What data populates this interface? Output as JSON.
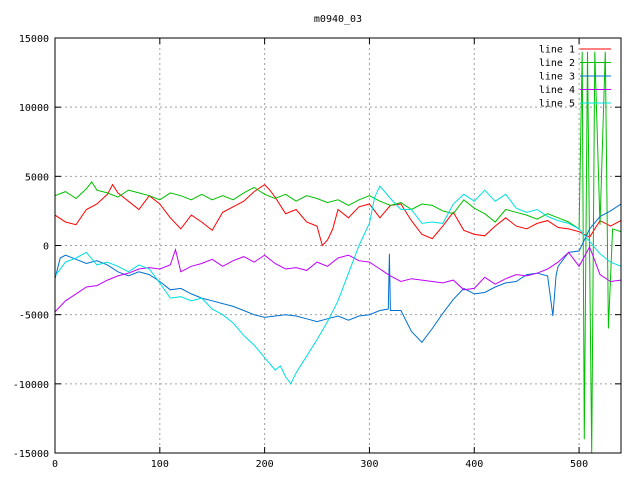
{
  "chart_data": {
    "type": "line",
    "title": "m0940_03",
    "xlabel": "",
    "ylabel": "",
    "xlim": [
      0,
      540
    ],
    "ylim": [
      -15000,
      15000
    ],
    "x_ticks": [
      0,
      100,
      200,
      300,
      400,
      500
    ],
    "y_ticks": [
      -15000,
      -10000,
      -5000,
      0,
      5000,
      10000,
      15000
    ],
    "grid": true,
    "legend_position": "top-right",
    "series": [
      {
        "name": "line 1",
        "color": "#ff0000",
        "points": [
          [
            0,
            2200
          ],
          [
            10,
            1700
          ],
          [
            20,
            1500
          ],
          [
            30,
            2600
          ],
          [
            40,
            3000
          ],
          [
            50,
            3700
          ],
          [
            55,
            4400
          ],
          [
            60,
            3800
          ],
          [
            70,
            3200
          ],
          [
            80,
            2600
          ],
          [
            90,
            3600
          ],
          [
            100,
            3000
          ],
          [
            110,
            2000
          ],
          [
            120,
            1200
          ],
          [
            130,
            2200
          ],
          [
            140,
            1700
          ],
          [
            150,
            1100
          ],
          [
            160,
            2400
          ],
          [
            170,
            2800
          ],
          [
            180,
            3200
          ],
          [
            190,
            3900
          ],
          [
            200,
            4400
          ],
          [
            205,
            4000
          ],
          [
            210,
            3500
          ],
          [
            220,
            2300
          ],
          [
            230,
            2600
          ],
          [
            240,
            1700
          ],
          [
            250,
            1400
          ],
          [
            255,
            0
          ],
          [
            260,
            400
          ],
          [
            265,
            1200
          ],
          [
            270,
            2600
          ],
          [
            280,
            2000
          ],
          [
            290,
            2800
          ],
          [
            300,
            3000
          ],
          [
            310,
            2000
          ],
          [
            320,
            2900
          ],
          [
            330,
            3000
          ],
          [
            340,
            1800
          ],
          [
            350,
            800
          ],
          [
            360,
            500
          ],
          [
            370,
            1400
          ],
          [
            380,
            2400
          ],
          [
            390,
            1100
          ],
          [
            400,
            800
          ],
          [
            410,
            700
          ],
          [
            420,
            1400
          ],
          [
            430,
            2000
          ],
          [
            440,
            1400
          ],
          [
            450,
            1200
          ],
          [
            460,
            1600
          ],
          [
            470,
            1800
          ],
          [
            480,
            1300
          ],
          [
            490,
            1200
          ],
          [
            500,
            1000
          ],
          [
            510,
            600
          ],
          [
            520,
            1800
          ],
          [
            530,
            1400
          ],
          [
            540,
            1800
          ]
        ]
      },
      {
        "name": "line 2",
        "color": "#00c000",
        "points": [
          [
            0,
            3600
          ],
          [
            10,
            3900
          ],
          [
            20,
            3400
          ],
          [
            30,
            4100
          ],
          [
            35,
            4600
          ],
          [
            40,
            4000
          ],
          [
            50,
            3800
          ],
          [
            60,
            3500
          ],
          [
            70,
            4000
          ],
          [
            80,
            3800
          ],
          [
            90,
            3600
          ],
          [
            100,
            3300
          ],
          [
            110,
            3800
          ],
          [
            120,
            3600
          ],
          [
            130,
            3300
          ],
          [
            140,
            3700
          ],
          [
            150,
            3300
          ],
          [
            160,
            3600
          ],
          [
            170,
            3300
          ],
          [
            180,
            3800
          ],
          [
            190,
            4200
          ],
          [
            200,
            3700
          ],
          [
            210,
            3400
          ],
          [
            220,
            3700
          ],
          [
            230,
            3200
          ],
          [
            240,
            3600
          ],
          [
            250,
            3400
          ],
          [
            260,
            3100
          ],
          [
            270,
            3300
          ],
          [
            280,
            2900
          ],
          [
            290,
            3300
          ],
          [
            300,
            3600
          ],
          [
            310,
            3200
          ],
          [
            320,
            2900
          ],
          [
            330,
            3100
          ],
          [
            340,
            2600
          ],
          [
            350,
            3000
          ],
          [
            360,
            2900
          ],
          [
            370,
            2500
          ],
          [
            380,
            2300
          ],
          [
            390,
            3300
          ],
          [
            400,
            2700
          ],
          [
            410,
            2300
          ],
          [
            420,
            1700
          ],
          [
            430,
            2600
          ],
          [
            440,
            2400
          ],
          [
            450,
            2200
          ],
          [
            460,
            1900
          ],
          [
            470,
            2300
          ],
          [
            480,
            2000
          ],
          [
            490,
            1700
          ],
          [
            500,
            1200
          ],
          [
            503,
            14000
          ],
          [
            505,
            -14000
          ],
          [
            508,
            14000
          ],
          [
            512,
            -15000
          ],
          [
            515,
            14000
          ],
          [
            520,
            1500
          ],
          [
            525,
            14000
          ],
          [
            528,
            -6000
          ],
          [
            532,
            1200
          ],
          [
            540,
            1000
          ]
        ]
      },
      {
        "name": "line 3",
        "color": "#0070d0",
        "points": [
          [
            0,
            -2400
          ],
          [
            5,
            -900
          ],
          [
            10,
            -700
          ],
          [
            20,
            -1000
          ],
          [
            30,
            -1300
          ],
          [
            40,
            -1100
          ],
          [
            50,
            -1400
          ],
          [
            60,
            -1900
          ],
          [
            70,
            -2200
          ],
          [
            80,
            -1900
          ],
          [
            90,
            -2100
          ],
          [
            100,
            -2600
          ],
          [
            110,
            -3200
          ],
          [
            120,
            -3100
          ],
          [
            130,
            -3500
          ],
          [
            140,
            -3800
          ],
          [
            150,
            -4000
          ],
          [
            160,
            -4200
          ],
          [
            170,
            -4400
          ],
          [
            180,
            -4700
          ],
          [
            190,
            -5000
          ],
          [
            200,
            -5200
          ],
          [
            210,
            -5100
          ],
          [
            220,
            -5000
          ],
          [
            230,
            -5100
          ],
          [
            240,
            -5300
          ],
          [
            250,
            -5500
          ],
          [
            260,
            -5300
          ],
          [
            270,
            -5100
          ],
          [
            280,
            -5400
          ],
          [
            290,
            -5100
          ],
          [
            300,
            -5000
          ],
          [
            310,
            -4700
          ],
          [
            318,
            -4600
          ],
          [
            319,
            -600
          ],
          [
            320,
            -4700
          ],
          [
            330,
            -4700
          ],
          [
            340,
            -6200
          ],
          [
            350,
            -7000
          ],
          [
            360,
            -6000
          ],
          [
            370,
            -4900
          ],
          [
            380,
            -3900
          ],
          [
            390,
            -3100
          ],
          [
            400,
            -3500
          ],
          [
            410,
            -3400
          ],
          [
            420,
            -3000
          ],
          [
            430,
            -2700
          ],
          [
            440,
            -2600
          ],
          [
            450,
            -2100
          ],
          [
            460,
            -2000
          ],
          [
            470,
            -2200
          ],
          [
            475,
            -5100
          ],
          [
            478,
            -2200
          ],
          [
            480,
            -1500
          ],
          [
            490,
            -500
          ],
          [
            500,
            -400
          ],
          [
            510,
            1200
          ],
          [
            520,
            2100
          ],
          [
            530,
            2500
          ],
          [
            540,
            3000
          ]
        ]
      },
      {
        "name": "line 4",
        "color": "#c000ff",
        "points": [
          [
            0,
            -4800
          ],
          [
            10,
            -4000
          ],
          [
            20,
            -3500
          ],
          [
            30,
            -3000
          ],
          [
            40,
            -2900
          ],
          [
            50,
            -2500
          ],
          [
            60,
            -2200
          ],
          [
            70,
            -2000
          ],
          [
            80,
            -1700
          ],
          [
            90,
            -1600
          ],
          [
            100,
            -1700
          ],
          [
            110,
            -1400
          ],
          [
            115,
            -300
          ],
          [
            120,
            -1900
          ],
          [
            130,
            -1500
          ],
          [
            140,
            -1300
          ],
          [
            150,
            -1000
          ],
          [
            160,
            -1500
          ],
          [
            170,
            -1100
          ],
          [
            180,
            -800
          ],
          [
            190,
            -1200
          ],
          [
            200,
            -700
          ],
          [
            210,
            -1300
          ],
          [
            220,
            -1700
          ],
          [
            230,
            -1600
          ],
          [
            240,
            -1800
          ],
          [
            250,
            -1200
          ],
          [
            260,
            -1500
          ],
          [
            270,
            -900
          ],
          [
            280,
            -700
          ],
          [
            290,
            -1100
          ],
          [
            300,
            -1200
          ],
          [
            310,
            -1700
          ],
          [
            320,
            -2200
          ],
          [
            330,
            -2600
          ],
          [
            340,
            -2400
          ],
          [
            350,
            -2500
          ],
          [
            360,
            -2600
          ],
          [
            370,
            -2700
          ],
          [
            380,
            -2500
          ],
          [
            390,
            -3200
          ],
          [
            400,
            -3100
          ],
          [
            410,
            -2300
          ],
          [
            420,
            -2800
          ],
          [
            430,
            -2400
          ],
          [
            440,
            -2100
          ],
          [
            450,
            -2200
          ],
          [
            460,
            -2000
          ],
          [
            470,
            -1700
          ],
          [
            480,
            -1200
          ],
          [
            490,
            -500
          ],
          [
            500,
            -1500
          ],
          [
            510,
            -100
          ],
          [
            520,
            -2100
          ],
          [
            530,
            -2600
          ],
          [
            540,
            -2500
          ]
        ]
      },
      {
        "name": "line 5",
        "color": "#00e0e0",
        "points": [
          [
            0,
            -2200
          ],
          [
            10,
            -1200
          ],
          [
            20,
            -900
          ],
          [
            30,
            -500
          ],
          [
            40,
            -1400
          ],
          [
            50,
            -1200
          ],
          [
            60,
            -1500
          ],
          [
            70,
            -1900
          ],
          [
            80,
            -1400
          ],
          [
            90,
            -1700
          ],
          [
            100,
            -2700
          ],
          [
            110,
            -3800
          ],
          [
            120,
            -3700
          ],
          [
            130,
            -4000
          ],
          [
            140,
            -3800
          ],
          [
            150,
            -4600
          ],
          [
            160,
            -5000
          ],
          [
            170,
            -5600
          ],
          [
            180,
            -6500
          ],
          [
            190,
            -7200
          ],
          [
            200,
            -8100
          ],
          [
            210,
            -9000
          ],
          [
            215,
            -8700
          ],
          [
            220,
            -9500
          ],
          [
            225,
            -10000
          ],
          [
            230,
            -9200
          ],
          [
            240,
            -8000
          ],
          [
            250,
            -6800
          ],
          [
            260,
            -5500
          ],
          [
            270,
            -4000
          ],
          [
            280,
            -2000
          ],
          [
            290,
            0
          ],
          [
            300,
            1600
          ],
          [
            305,
            3500
          ],
          [
            310,
            4300
          ],
          [
            320,
            3400
          ],
          [
            330,
            2600
          ],
          [
            340,
            2600
          ],
          [
            350,
            1600
          ],
          [
            360,
            1700
          ],
          [
            370,
            1600
          ],
          [
            380,
            3000
          ],
          [
            390,
            3700
          ],
          [
            400,
            3200
          ],
          [
            410,
            4000
          ],
          [
            420,
            3200
          ],
          [
            430,
            3700
          ],
          [
            440,
            2700
          ],
          [
            450,
            2400
          ],
          [
            460,
            2600
          ],
          [
            470,
            2100
          ],
          [
            480,
            1800
          ],
          [
            490,
            1600
          ],
          [
            500,
            1200
          ],
          [
            510,
            300
          ],
          [
            520,
            -600
          ],
          [
            530,
            -1200
          ],
          [
            540,
            -1500
          ]
        ]
      }
    ]
  }
}
